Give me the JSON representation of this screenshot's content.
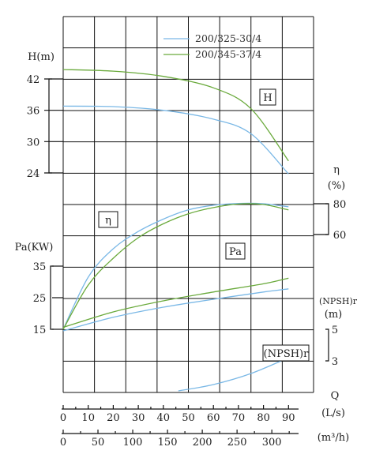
{
  "chart_data": {
    "type": "line",
    "legend": {
      "placement": "top-right",
      "entries": [
        {
          "name": "200/325-30/4",
          "color": "#7ab8e6"
        },
        {
          "name": "200/345-37/4",
          "color": "#6aaa3c"
        }
      ]
    },
    "x_axis": {
      "label": "Q",
      "scales": [
        {
          "unit": "(L/s)",
          "ticks": [
            "0",
            "10",
            "20",
            "30",
            "40",
            "50",
            "60",
            "70",
            "80",
            "90"
          ],
          "range": [
            0,
            100
          ]
        },
        {
          "unit": "(m³/h)",
          "ticks": [
            "0",
            "50",
            "100",
            "150",
            "200",
            "250",
            "300"
          ],
          "range": [
            0,
            360
          ]
        }
      ]
    },
    "y_axes": {
      "H": {
        "label": "H(m)",
        "ticks": [
          "24",
          "30",
          "36",
          "42"
        ],
        "range": [
          24,
          42
        ]
      },
      "eta": {
        "label": "η",
        "unit": "(%)",
        "ticks": [
          "60",
          "80"
        ],
        "range": [
          60,
          80
        ]
      },
      "Pa": {
        "label": "Pa(KW)",
        "ticks": [
          "15",
          "25",
          "35"
        ],
        "range": [
          15,
          35
        ]
      },
      "NPSH": {
        "label": "(NPSH)r",
        "unit": "(m)",
        "ticks": [
          "3",
          "5"
        ],
        "range": [
          3,
          5
        ]
      }
    },
    "curve_labels": {
      "H": "H",
      "eta": "η",
      "Pa": "Pa",
      "NPSH": "(NPSH)r"
    },
    "series": [
      {
        "name": "200/325-30/4",
        "curve": "H",
        "x": [
          0,
          20,
          40,
          60,
          75,
          90
        ],
        "y": [
          36.8,
          36.7,
          36.0,
          34.3,
          31.5,
          23.8
        ]
      },
      {
        "name": "200/345-37/4",
        "curve": "H",
        "x": [
          0,
          20,
          40,
          60,
          75,
          90
        ],
        "y": [
          43.8,
          43.5,
          42.5,
          40.3,
          36.3,
          26.3
        ]
      },
      {
        "name": "200/325-30/4",
        "curve": "eta",
        "x": [
          0,
          10,
          20,
          30,
          40,
          50,
          60,
          70,
          80,
          90
        ],
        "y": [
          0,
          33,
          51,
          62,
          70,
          76,
          79,
          80.2,
          80,
          78
        ]
      },
      {
        "name": "200/345-37/4",
        "curve": "eta",
        "x": [
          0,
          10,
          20,
          30,
          40,
          50,
          60,
          70,
          80,
          90
        ],
        "y": [
          0,
          28,
          45,
          58,
          67,
          73.5,
          77.5,
          79.8,
          79.5,
          76
        ]
      },
      {
        "name": "200/325-30/4",
        "curve": "Pa",
        "x": [
          0,
          20,
          40,
          60,
          80,
          90
        ],
        "y": [
          14.5,
          18.8,
          22,
          24.5,
          26.8,
          27.8
        ]
      },
      {
        "name": "200/345-37/4",
        "curve": "Pa",
        "x": [
          0,
          20,
          40,
          60,
          80,
          90
        ],
        "y": [
          15.6,
          20.5,
          24,
          26.8,
          29.4,
          31.2
        ]
      },
      {
        "name": "200/325-30/4",
        "curve": "NPSH",
        "x": [
          46,
          60,
          75,
          90
        ],
        "y": [
          1.1,
          1.5,
          2.2,
          3.2
        ]
      }
    ]
  }
}
